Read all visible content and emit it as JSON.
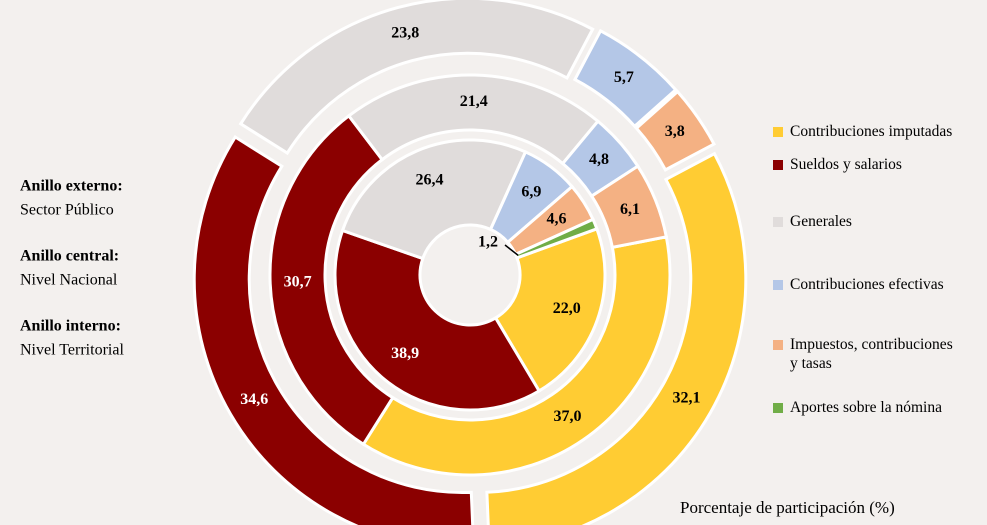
{
  "chart_data": {
    "type": "donut",
    "categories": [
      "Contribuciones imputadas",
      "Sueldos y salarios",
      "Generales",
      "Contribuciones efectivas",
      "Impuestos, contribuciones y tasas",
      "Aportes sobre la nómina"
    ],
    "colors": [
      "#ffcc33",
      "#8b0000",
      "#e0dcdb",
      "#b4c7e7",
      "#f4b183",
      "#70ad47"
    ],
    "rings": [
      {
        "label": "Anillo externo:",
        "name": "Sector Público",
        "values": [
          32.1,
          34.6,
          23.8,
          5.7,
          3.8,
          null
        ],
        "value_labels": [
          "32,1",
          "34,6",
          "23,8",
          "5,7",
          "3,8",
          null
        ]
      },
      {
        "label": "Anillo central:",
        "name": "Nivel Nacional",
        "values": [
          37.0,
          30.7,
          21.4,
          4.8,
          6.1,
          null
        ],
        "value_labels": [
          "37,0",
          "30,7",
          "21,4",
          "4,8",
          "6,1",
          null
        ]
      },
      {
        "label": "Anillo interno:",
        "name": "Nivel Territorial",
        "values": [
          22.0,
          38.9,
          26.4,
          6.9,
          4.6,
          1.2
        ],
        "value_labels": [
          "22,0",
          "38,9",
          "26,4",
          "6,9",
          "4,6",
          "1,2"
        ]
      }
    ],
    "note": "Porcentaje de participación (%)"
  }
}
